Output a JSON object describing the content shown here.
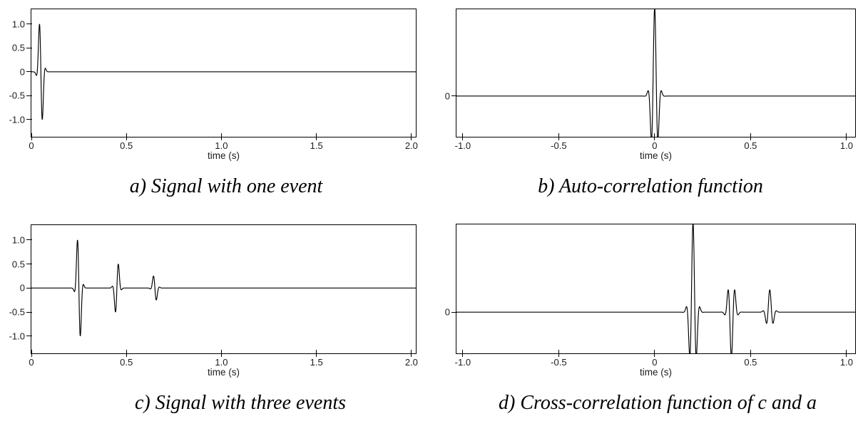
{
  "figure": {
    "background": "#ffffff",
    "trace_color": "#000000",
    "wavelet_model": {
      "freq_hz": 26,
      "signal_tau_s": 0.015,
      "autocorr_tau_s": 0.0215
    }
  },
  "chart_data": [
    {
      "id": "a",
      "type": "line",
      "title": "a) Signal with one event",
      "xlabel": "time (s)",
      "line_color": "#000000",
      "grid": false,
      "xlim": [
        0,
        2.023
      ],
      "ylim": [
        -1.36,
        1.31
      ],
      "xticks": [
        {
          "v": 0,
          "label": "0"
        },
        {
          "v": 0.5,
          "label": "0.5"
        },
        {
          "v": 1.0,
          "label": "1.0"
        },
        {
          "v": 1.5,
          "label": "1.5"
        },
        {
          "v": 2.0,
          "label": "2.0"
        }
      ],
      "yticks": [
        {
          "v": 1.0,
          "label": "1.0"
        },
        {
          "v": 0.5,
          "label": "0.5"
        },
        {
          "v": 0,
          "label": "0"
        },
        {
          "v": -0.5,
          "label": "-0.5"
        },
        {
          "v": -1.0,
          "label": "-1.0"
        }
      ],
      "waveform": "signal",
      "events": [
        {
          "t": 0.05,
          "amplitude": 1.0
        }
      ]
    },
    {
      "id": "b",
      "type": "line",
      "title": "b) Auto-correlation function",
      "xlabel": "time (s)",
      "line_color": "#000000",
      "grid": false,
      "xlim": [
        -1.033,
        1.045
      ],
      "ylim": [
        -0.46,
        0.98
      ],
      "xticks": [
        {
          "v": -1.0,
          "label": "-1.0"
        },
        {
          "v": -0.5,
          "label": "-0.5"
        },
        {
          "v": 0,
          "label": "0"
        },
        {
          "v": 0.5,
          "label": "0.5"
        },
        {
          "v": 1.0,
          "label": "1.0"
        }
      ],
      "yticks": [
        {
          "v": 0,
          "label": "0"
        }
      ],
      "waveform": "autocorr",
      "events": [
        {
          "t": 0,
          "amplitude": 1.0
        }
      ]
    },
    {
      "id": "c",
      "type": "line",
      "title": "c) Signal with three events",
      "xlabel": "time (s)",
      "line_color": "#000000",
      "grid": false,
      "xlim": [
        0,
        2.023
      ],
      "ylim": [
        -1.36,
        1.31
      ],
      "xticks": [
        {
          "v": 0,
          "label": "0"
        },
        {
          "v": 0.5,
          "label": "0.5"
        },
        {
          "v": 1.0,
          "label": "1.0"
        },
        {
          "v": 1.5,
          "label": "1.5"
        },
        {
          "v": 2.0,
          "label": "2.0"
        }
      ],
      "yticks": [
        {
          "v": 1.0,
          "label": "1.0"
        },
        {
          "v": 0.5,
          "label": "0.5"
        },
        {
          "v": 0,
          "label": "0"
        },
        {
          "v": -0.5,
          "label": "-0.5"
        },
        {
          "v": -1.0,
          "label": "-1.0"
        }
      ],
      "waveform": "signal",
      "events": [
        {
          "t": 0.25,
          "amplitude": 1.0
        },
        {
          "t": 0.45,
          "amplitude": -0.5
        },
        {
          "t": 0.65,
          "amplitude": 0.25
        }
      ]
    },
    {
      "id": "d",
      "type": "line",
      "title": "d) Cross-correlation function of c and a",
      "xlabel": "time (s)",
      "line_color": "#000000",
      "grid": false,
      "xlim": [
        -1.033,
        1.045
      ],
      "ylim": [
        -0.46,
        0.98
      ],
      "xticks": [
        {
          "v": -1.0,
          "label": "-1.0"
        },
        {
          "v": -0.5,
          "label": "-0.5"
        },
        {
          "v": 0,
          "label": "0"
        },
        {
          "v": 0.5,
          "label": "0.5"
        },
        {
          "v": 1.0,
          "label": "1.0"
        }
      ],
      "yticks": [
        {
          "v": 0,
          "label": "0"
        }
      ],
      "waveform": "autocorr",
      "events": [
        {
          "t": 0.2,
          "amplitude": 1.0
        },
        {
          "t": 0.4,
          "amplitude": -0.5
        },
        {
          "t": 0.6,
          "amplitude": 0.25
        }
      ]
    }
  ]
}
